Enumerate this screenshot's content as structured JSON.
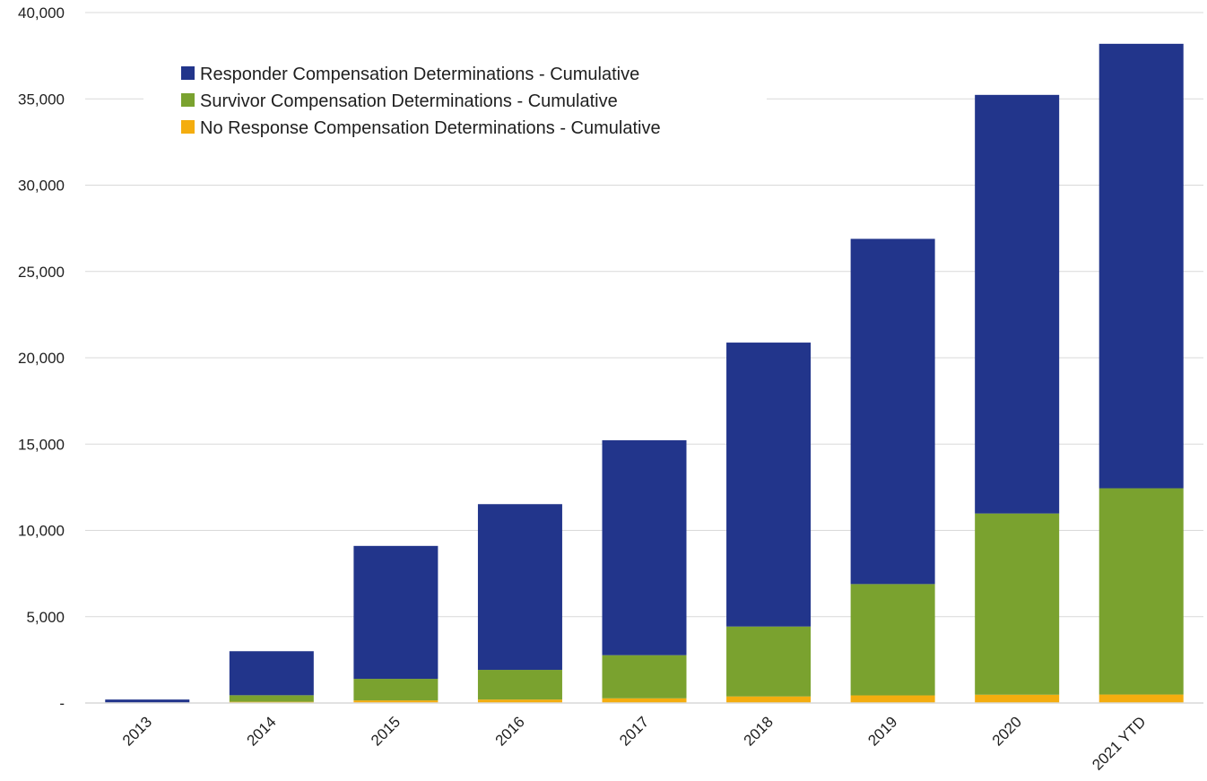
{
  "chart_data": {
    "type": "bar",
    "stacked": true,
    "categories": [
      "2013",
      "2014",
      "2015",
      "2016",
      "2017",
      "2018",
      "2019",
      "2020",
      "2021 YTD"
    ],
    "series": [
      {
        "name": "No Response Compensation Determinations - Cumulative",
        "color": "#f4ad0f",
        "values": [
          10,
          70,
          150,
          200,
          270,
          380,
          440,
          480,
          490
        ]
      },
      {
        "name": "Survivor Compensation Determinations - Cumulative",
        "color": "#7aa22f",
        "values": [
          20,
          380,
          1250,
          1720,
          2500,
          4050,
          6450,
          10500,
          11950
        ]
      },
      {
        "name": "Responder Compensation Determinations - Cumulative",
        "color": "#22358b",
        "values": [
          170,
          2550,
          7700,
          9600,
          12450,
          16450,
          20000,
          24250,
          25750
        ]
      }
    ],
    "legend_order": [
      "Responder Compensation Determinations - Cumulative",
      "Survivor Compensation Determinations - Cumulative",
      "No Response Compensation Determinations - Cumulative"
    ],
    "ylim": [
      0,
      40000
    ],
    "yticks": [
      0,
      5000,
      10000,
      15000,
      20000,
      25000,
      30000,
      35000,
      40000
    ],
    "ytick_labels": [
      "-",
      "5,000",
      "10,000",
      "15,000",
      "20,000",
      "25,000",
      "30,000",
      "35,000",
      "40,000"
    ],
    "title": "",
    "xlabel": "",
    "ylabel": "",
    "grid": true,
    "legend_position": "top-left inside"
  }
}
